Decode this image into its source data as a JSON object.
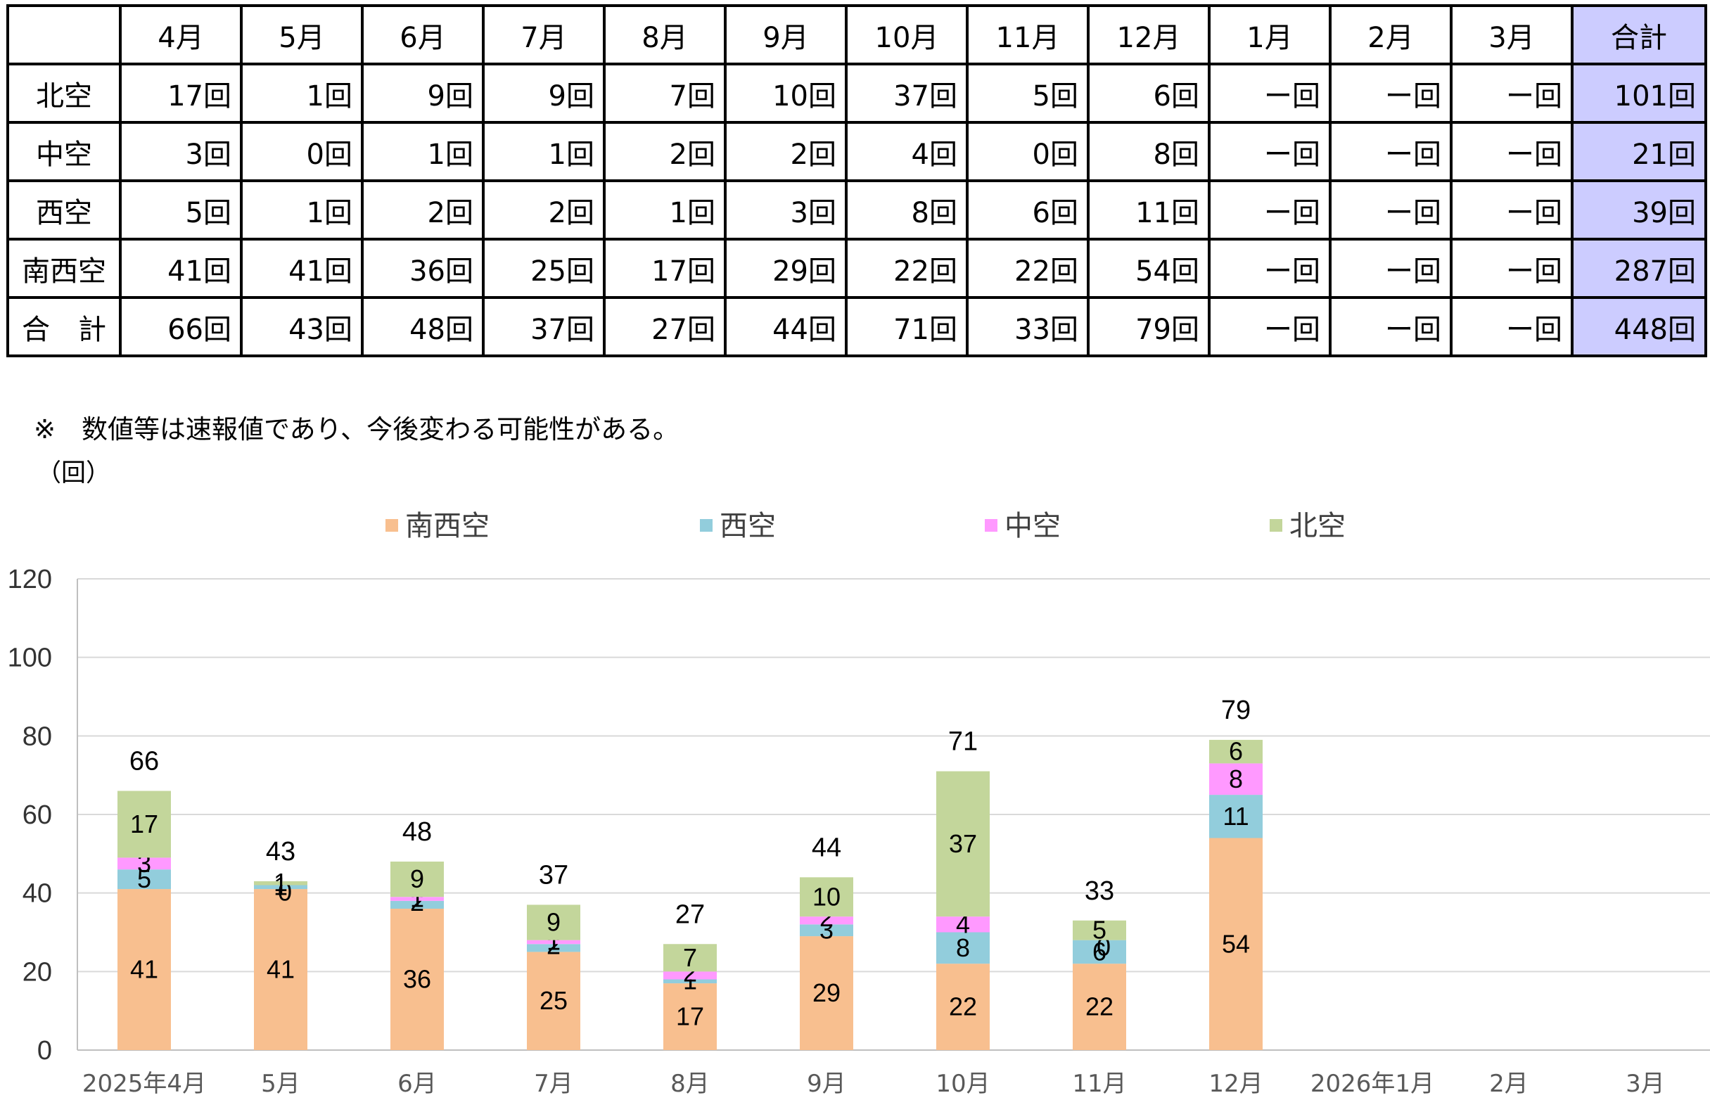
{
  "table": {
    "corner": "",
    "headers": [
      "4月",
      "5月",
      "6月",
      "7月",
      "8月",
      "9月",
      "10月",
      "11月",
      "12月",
      "1月",
      "2月",
      "3月",
      "合計"
    ],
    "rows": [
      {
        "label": "北空",
        "cells": [
          "17回",
          "1回",
          "9回",
          "9回",
          "7回",
          "10回",
          "37回",
          "5回",
          "6回",
          "ー回",
          "ー回",
          "ー回",
          "101回"
        ]
      },
      {
        "label": "中空",
        "cells": [
          "3回",
          "0回",
          "1回",
          "1回",
          "2回",
          "2回",
          "4回",
          "0回",
          "8回",
          "ー回",
          "ー回",
          "ー回",
          "21回"
        ]
      },
      {
        "label": "西空",
        "cells": [
          "5回",
          "1回",
          "2回",
          "2回",
          "1回",
          "3回",
          "8回",
          "6回",
          "11回",
          "ー回",
          "ー回",
          "ー回",
          "39回"
        ]
      },
      {
        "label": "南西空",
        "cells": [
          "41回",
          "41回",
          "36回",
          "25回",
          "17回",
          "29回",
          "22回",
          "22回",
          "54回",
          "ー回",
          "ー回",
          "ー回",
          "287回"
        ]
      },
      {
        "label": "合　計",
        "cells": [
          "66回",
          "43回",
          "48回",
          "37回",
          "27回",
          "44回",
          "71回",
          "33回",
          "79回",
          "ー回",
          "ー回",
          "ー回",
          "448回"
        ]
      }
    ],
    "total_color": "#ccccff"
  },
  "note": "※　数値等は速報値であり、今後変わる可能性がある。",
  "unit": "（回）",
  "chart_data": {
    "type": "bar",
    "stacked": true,
    "categories": [
      "2025年4月",
      "5月",
      "6月",
      "7月",
      "8月",
      "9月",
      "10月",
      "11月",
      "12月",
      "2026年1月",
      "2月",
      "3月"
    ],
    "series": [
      {
        "name": "南西空",
        "color": "#f8bf8f",
        "values": [
          41,
          41,
          36,
          25,
          17,
          29,
          22,
          22,
          54,
          null,
          null,
          null
        ]
      },
      {
        "name": "西空",
        "color": "#92cddc",
        "values": [
          5,
          1,
          2,
          2,
          1,
          3,
          8,
          6,
          11,
          null,
          null,
          null
        ]
      },
      {
        "name": "中空",
        "color": "#ff99ff",
        "values": [
          3,
          0,
          1,
          1,
          2,
          2,
          4,
          0,
          8,
          null,
          null,
          null
        ]
      },
      {
        "name": "北空",
        "color": "#c3d69b",
        "values": [
          17,
          1,
          9,
          9,
          7,
          10,
          37,
          5,
          6,
          null,
          null,
          null
        ]
      }
    ],
    "totals": [
      66,
      43,
      48,
      37,
      27,
      44,
      71,
      33,
      79,
      null,
      null,
      null
    ],
    "ylim": [
      0,
      120
    ],
    "yticks": [
      0,
      20,
      40,
      60,
      80,
      100,
      120
    ],
    "grid": true,
    "legend": "top"
  }
}
